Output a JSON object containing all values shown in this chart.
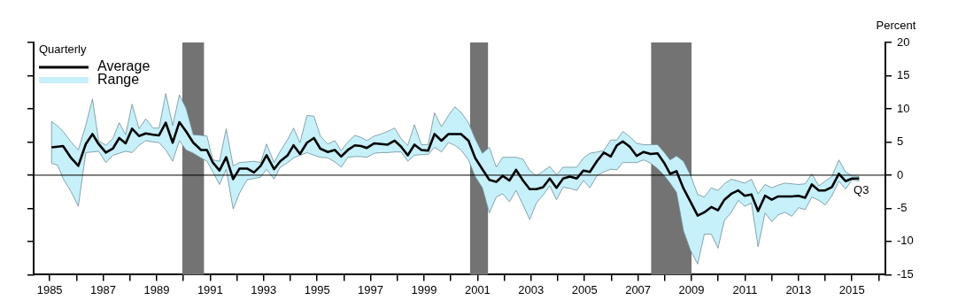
{
  "chart_data": {
    "type": "line",
    "ylabel": "Percent",
    "legend_title": "Quarterly",
    "legend": "top left",
    "grid": false,
    "marker": "none",
    "x": [
      1985.07,
      1985.3,
      1985.5,
      1985.8,
      1986.07,
      1986.35,
      1986.6,
      1986.83,
      1987.1,
      1987.36,
      1987.6,
      1987.84,
      1988.08,
      1988.34,
      1988.59,
      1988.87,
      1989.09,
      1989.34,
      1989.6,
      1989.85,
      1990.1,
      1990.37,
      1990.66,
      1990.88,
      1991.1,
      1991.35,
      1991.6,
      1991.86,
      1992.1,
      1992.38,
      1992.64,
      1992.89,
      1993.11,
      1993.39,
      1993.62,
      1993.9,
      1994.12,
      1994.36,
      1994.62,
      1994.88,
      1995.12,
      1995.4,
      1995.66,
      1995.9,
      1996.15,
      1996.41,
      1996.64,
      1996.86,
      1997.14,
      1997.39,
      1997.64,
      1997.9,
      1998.14,
      1998.39,
      1998.64,
      1998.9,
      1999.15,
      1999.39,
      1999.65,
      1999.91,
      2000.15,
      2000.38,
      2000.66,
      2000.91,
      2001.18,
      2001.44,
      2001.7,
      2001.94,
      2002.19,
      2002.44,
      2002.7,
      2002.95,
      2003.2,
      2003.45,
      2003.7,
      2003.95,
      2004.2,
      2004.45,
      2004.71,
      2004.96,
      2005.2,
      2005.46,
      2005.72,
      2005.98,
      2006.21,
      2006.43,
      2006.69,
      2006.95,
      2007.21,
      2007.47,
      2007.73,
      2007.97,
      2008.2,
      2008.44,
      2008.7,
      2008.96,
      2009.23,
      2009.48,
      2009.74,
      2009.99,
      2010.23,
      2010.49,
      2010.75,
      2010.99,
      2011.24,
      2011.49,
      2011.75,
      2012.0,
      2012.24,
      2012.49,
      2012.75,
      2013.0,
      2013.25,
      2013.5,
      2013.76,
      2014.0,
      2014.25,
      2014.51,
      2014.76,
      2015.0,
      2015.26
    ],
    "series": [
      {
        "name": "Average",
        "type": "line",
        "color": "#000000",
        "upper": [
          8.1,
          7.4,
          6.6,
          5.0,
          3.8,
          7.5,
          11.5,
          5.2,
          4.5,
          5.5,
          7.9,
          6.1,
          10.7,
          7.0,
          8.5,
          7.1,
          7.1,
          12.3,
          7.5,
          12.1,
          10.1,
          6.1,
          6.0,
          5.9,
          2.3,
          2.1,
          7.0,
          1.4,
          1.9,
          2.0,
          2.1,
          1.9,
          4.7,
          1.9,
          3.6,
          5.4,
          7.1,
          4.9,
          9.0,
          8.9,
          5.9,
          4.7,
          5.2,
          3.7,
          5.0,
          6.0,
          5.7,
          5.2,
          5.9,
          6.2,
          6.6,
          7.1,
          5.5,
          4.5,
          7.6,
          4.6,
          4.6,
          9.4,
          7.3,
          9.0,
          10.3,
          9.5,
          7.9,
          5.5,
          3.3,
          4.2,
          1.2,
          2.7,
          2.7,
          2.7,
          2.4,
          0.7,
          -0.1,
          0.6,
          1.3,
          0.1,
          1.2,
          1.2,
          1.2,
          2.6,
          3.3,
          3.5,
          3.7,
          5.3,
          5.3,
          6.6,
          5.8,
          4.8,
          4.6,
          4.6,
          4.6,
          3.5,
          2.3,
          2.9,
          2.1,
          0.0,
          -2.9,
          -3.3,
          -1.9,
          -2.3,
          -1.3,
          -0.6,
          -0.9,
          -1.2,
          -0.6,
          -2.8,
          -1.4,
          -1.9,
          -1.5,
          -1.2,
          -1.3,
          -1.4,
          -1.3,
          0.2,
          -1.6,
          -0.9,
          -0.2,
          2.3,
          0.5,
          -0.1,
          -0.2
        ],
        "lower": [
          1.8,
          1.5,
          -0.5,
          -2.5,
          -4.7,
          3.4,
          3.5,
          3.6,
          1.9,
          3.0,
          3.3,
          3.6,
          3.4,
          4.5,
          5.2,
          5.0,
          4.9,
          3.8,
          2.1,
          5.2,
          3.8,
          3.3,
          2.6,
          2.1,
          0.5,
          -1.4,
          0.9,
          -5.1,
          -2.7,
          -0.7,
          -0.5,
          -0.3,
          0.9,
          -0.6,
          1.2,
          1.9,
          2.6,
          3.0,
          3.4,
          3.0,
          2.7,
          2.6,
          2.0,
          1.2,
          2.7,
          2.8,
          2.8,
          2.7,
          3.3,
          3.4,
          3.4,
          3.5,
          3.5,
          2.1,
          3.0,
          3.1,
          3.1,
          4.2,
          3.5,
          4.9,
          4.5,
          3.8,
          2.3,
          -0.2,
          -1.9,
          -5.7,
          -3.3,
          -2.8,
          -4.0,
          -2.3,
          -4.5,
          -6.7,
          -4.2,
          -3.0,
          -1.6,
          -3.7,
          -1.8,
          -2.0,
          -2.3,
          -0.8,
          -1.9,
          -0.1,
          0.5,
          0.9,
          0.8,
          1.9,
          1.9,
          1.9,
          2.3,
          1.8,
          1.0,
          0.0,
          -1.2,
          -2.6,
          -8.4,
          -11.3,
          -13.4,
          -8.9,
          -8.9,
          -11.0,
          -6.8,
          -5.6,
          -3.8,
          -4.7,
          -4.2,
          -10.8,
          -5.7,
          -7.0,
          -6.0,
          -5.6,
          -6.2,
          -4.9,
          -5.2,
          -3.3,
          -3.8,
          -4.5,
          -3.1,
          -0.9,
          -2.1,
          -0.7,
          -0.9
        ],
        "values": [
          4.2,
          4.3,
          4.4,
          2.6,
          1.4,
          4.7,
          6.2,
          4.7,
          3.4,
          4.0,
          5.6,
          4.8,
          7.0,
          5.9,
          6.3,
          6.1,
          6.0,
          7.9,
          4.9,
          8.0,
          6.6,
          4.9,
          3.8,
          3.8,
          1.9,
          0.7,
          2.7,
          -0.6,
          1.0,
          1.0,
          0.4,
          1.4,
          3.0,
          0.9,
          2.1,
          3.0,
          4.5,
          3.2,
          4.9,
          5.6,
          4.0,
          3.5,
          3.8,
          2.8,
          3.8,
          4.5,
          4.4,
          4.1,
          4.8,
          4.7,
          4.6,
          5.2,
          4.3,
          3.0,
          4.6,
          3.8,
          3.7,
          6.2,
          5.2,
          6.2,
          6.2,
          6.2,
          5.2,
          2.6,
          0.9,
          -0.7,
          -1.0,
          -0.1,
          -0.8,
          0.8,
          -0.8,
          -2.1,
          -2.1,
          -1.8,
          -0.5,
          -1.9,
          -0.5,
          -0.2,
          -0.5,
          0.7,
          0.5,
          2.1,
          3.4,
          2.8,
          4.5,
          5.1,
          4.3,
          2.9,
          3.5,
          3.2,
          3.3,
          1.9,
          0.2,
          0.6,
          -2.0,
          -4.0,
          -6.1,
          -5.6,
          -4.8,
          -5.3,
          -3.7,
          -2.8,
          -2.3,
          -3.1,
          -2.9,
          -5.4,
          -3.1,
          -3.7,
          -3.2,
          -3.2,
          -3.2,
          -3.1,
          -3.4,
          -1.4,
          -2.3,
          -2.3,
          -1.8,
          0.2,
          -0.9,
          -0.5,
          -0.5
        ]
      }
    ],
    "xlim": [
      1984.4,
      2016.25
    ],
    "xticks": [
      1985,
      {
        "value": 1986,
        "label": null
      },
      1987,
      {
        "value": 1988,
        "label": null
      },
      1989,
      {
        "value": 1990,
        "label": null
      },
      1991,
      {
        "value": 1992,
        "label": null
      },
      1993,
      {
        "value": 1994,
        "label": null
      },
      1995,
      {
        "value": 1996,
        "label": null
      },
      1997,
      {
        "value": 1998,
        "label": null
      },
      1999,
      {
        "value": 2000,
        "label": null
      },
      2001,
      {
        "value": 2002,
        "label": null
      },
      2003,
      {
        "value": 2004,
        "label": null
      },
      2005,
      {
        "value": 2006,
        "label": null
      },
      2007,
      {
        "value": 2008,
        "label": null
      },
      2009,
      {
        "value": 2010,
        "label": null
      },
      2011,
      {
        "value": 2012,
        "label": null
      },
      2013,
      {
        "value": 2014,
        "label": null
      },
      2015,
      {
        "value": 2016,
        "label": null
      }
    ],
    "ylim": [
      -15,
      20
    ],
    "yticks": [
      -15,
      -10,
      -5,
      0,
      5,
      10,
      15,
      20
    ],
    "ref_lines": [
      {
        "axis": "y",
        "value": 0,
        "color": "#000000"
      }
    ],
    "bands": [
      {
        "axis": "x",
        "from": 1989.96,
        "to": 1990.77,
        "color": "#737373"
      },
      {
        "axis": "x",
        "from": 2000.72,
        "to": 2001.39,
        "color": "#737373"
      },
      {
        "axis": "x",
        "from": 2007.49,
        "to": 2009.0,
        "color": "#737373"
      }
    ],
    "annotations": [
      "Range",
      {
        "text": "Q3",
        "x": 2015.26,
        "y": -0.5
      }
    ]
  }
}
